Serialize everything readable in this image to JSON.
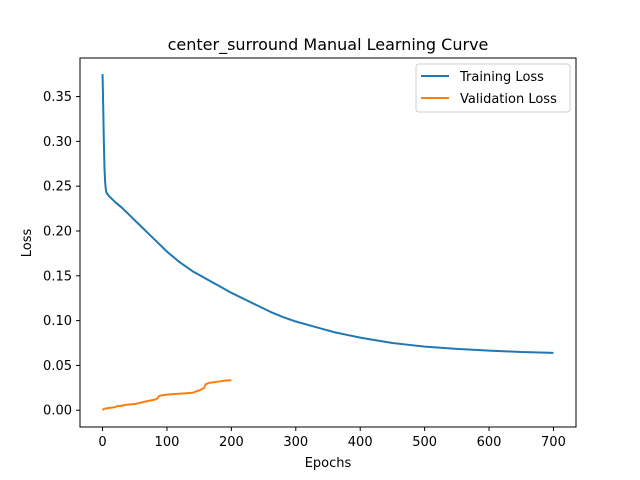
{
  "chart_data": {
    "type": "line",
    "title": "center_surround Manual Learning Curve",
    "xlabel": "Epochs",
    "ylabel": "Loss",
    "xlim": [
      -35,
      735
    ],
    "ylim": [
      -0.0187,
      0.393
    ],
    "xticks": [
      0,
      100,
      200,
      300,
      400,
      500,
      600,
      700
    ],
    "yticks": [
      0.0,
      0.05,
      0.1,
      0.15,
      0.2,
      0.25,
      0.3,
      0.35
    ],
    "ytick_labels": [
      "0.00",
      "0.05",
      "0.10",
      "0.15",
      "0.20",
      "0.25",
      "0.30",
      "0.35"
    ],
    "grid": false,
    "legend_position": "upper right",
    "series": [
      {
        "name": "Training Loss",
        "color": "#1f77b4",
        "points": [
          [
            0,
            0.375
          ],
          [
            1,
            0.34
          ],
          [
            2,
            0.3
          ],
          [
            3,
            0.27
          ],
          [
            4,
            0.255
          ],
          [
            5,
            0.247
          ],
          [
            6,
            0.243
          ],
          [
            8,
            0.241
          ],
          [
            10,
            0.239
          ],
          [
            20,
            0.232
          ],
          [
            30,
            0.226
          ],
          [
            40,
            0.219
          ],
          [
            50,
            0.212
          ],
          [
            60,
            0.205
          ],
          [
            70,
            0.198
          ],
          [
            80,
            0.191
          ],
          [
            90,
            0.184
          ],
          [
            100,
            0.177
          ],
          [
            110,
            0.171
          ],
          [
            120,
            0.165
          ],
          [
            130,
            0.16
          ],
          [
            140,
            0.155
          ],
          [
            150,
            0.151
          ],
          [
            160,
            0.147
          ],
          [
            170,
            0.143
          ],
          [
            180,
            0.139
          ],
          [
            190,
            0.135
          ],
          [
            200,
            0.131
          ],
          [
            220,
            0.124
          ],
          [
            240,
            0.117
          ],
          [
            260,
            0.11
          ],
          [
            280,
            0.104
          ],
          [
            300,
            0.099
          ],
          [
            320,
            0.095
          ],
          [
            340,
            0.091
          ],
          [
            360,
            0.087
          ],
          [
            380,
            0.084
          ],
          [
            400,
            0.081
          ],
          [
            425,
            0.078
          ],
          [
            450,
            0.075
          ],
          [
            475,
            0.073
          ],
          [
            500,
            0.071
          ],
          [
            550,
            0.0685
          ],
          [
            600,
            0.0665
          ],
          [
            650,
            0.065
          ],
          [
            700,
            0.064
          ]
        ]
      },
      {
        "name": "Validation Loss",
        "color": "#ff7f0e",
        "points": [
          [
            0,
            0.0
          ],
          [
            2,
            0.0015
          ],
          [
            5,
            0.002
          ],
          [
            10,
            0.0025
          ],
          [
            15,
            0.003
          ],
          [
            20,
            0.0035
          ],
          [
            22,
            0.0045
          ],
          [
            30,
            0.005
          ],
          [
            35,
            0.006
          ],
          [
            50,
            0.007
          ],
          [
            60,
            0.0085
          ],
          [
            65,
            0.0095
          ],
          [
            75,
            0.011
          ],
          [
            82,
            0.012
          ],
          [
            85,
            0.013
          ],
          [
            88,
            0.016
          ],
          [
            95,
            0.017
          ],
          [
            110,
            0.018
          ],
          [
            130,
            0.019
          ],
          [
            140,
            0.0195
          ],
          [
            145,
            0.021
          ],
          [
            150,
            0.022
          ],
          [
            155,
            0.024
          ],
          [
            158,
            0.025
          ],
          [
            160,
            0.029
          ],
          [
            165,
            0.0305
          ],
          [
            170,
            0.031
          ],
          [
            180,
            0.032
          ],
          [
            185,
            0.0325
          ],
          [
            190,
            0.033
          ],
          [
            200,
            0.0335
          ]
        ]
      }
    ]
  }
}
